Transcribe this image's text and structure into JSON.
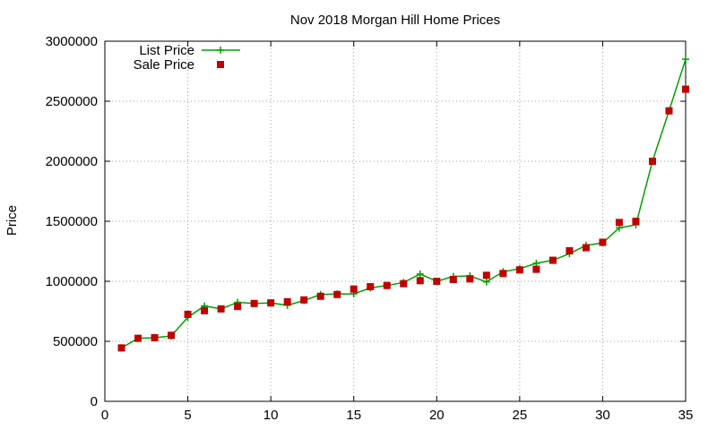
{
  "chart_data": {
    "type": "line",
    "title": "Nov 2018 Morgan Hill Home Prices",
    "xlabel": "",
    "ylabel": "Price",
    "xlim": [
      0,
      35
    ],
    "ylim": [
      0,
      3000000
    ],
    "x_ticks": [
      "0",
      "5",
      "10",
      "15",
      "20",
      "25",
      "30",
      "35"
    ],
    "y_ticks": [
      "0",
      "500000",
      "1000000",
      "1500000",
      "2000000",
      "2500000",
      "3000000"
    ],
    "grid": true,
    "legend_position": "top-left",
    "x": [
      1,
      2,
      3,
      4,
      5,
      6,
      7,
      8,
      9,
      10,
      11,
      12,
      13,
      14,
      15,
      16,
      17,
      18,
      19,
      20,
      21,
      22,
      23,
      24,
      25,
      26,
      27,
      28,
      29,
      30,
      31,
      32,
      33,
      34,
      35
    ],
    "series": [
      {
        "name": "List Price",
        "style": "line-points",
        "color": "#00a000",
        "marker": "plus",
        "values": [
          445000,
          525000,
          530000,
          545000,
          700000,
          795000,
          770000,
          825000,
          815000,
          820000,
          800000,
          840000,
          890000,
          895000,
          895000,
          945000,
          965000,
          990000,
          1060000,
          1000000,
          1040000,
          1045000,
          995000,
          1080000,
          1105000,
          1150000,
          1175000,
          1230000,
          1300000,
          1320000,
          1445000,
          1470000,
          2000000,
          2420000,
          2850000
        ]
      },
      {
        "name": "Sale Price",
        "style": "points",
        "color": "#c00000",
        "marker": "square",
        "values": [
          445000,
          525000,
          530000,
          550000,
          725000,
          755000,
          770000,
          790000,
          815000,
          820000,
          830000,
          845000,
          875000,
          890000,
          935000,
          955000,
          965000,
          980000,
          1005000,
          1000000,
          1015000,
          1020000,
          1050000,
          1065000,
          1095000,
          1100000,
          1175000,
          1255000,
          1280000,
          1325000,
          1490000,
          1500000,
          2000000,
          2420000,
          2600000
        ]
      }
    ]
  }
}
